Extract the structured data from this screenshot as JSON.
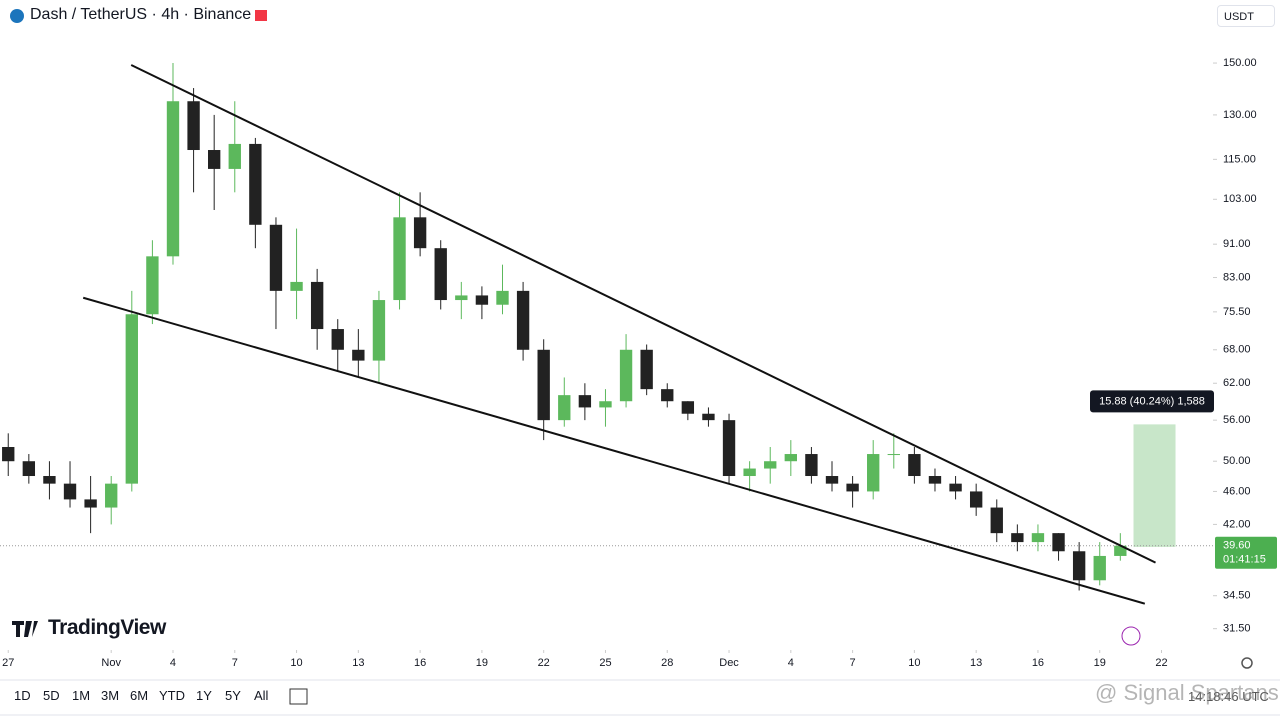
{
  "header": {
    "title": "Dash / TetherUS · 4h · Binance",
    "currency": "USDT"
  },
  "brand": "TradingView",
  "toolbar": {
    "ranges": [
      "1D",
      "5D",
      "1M",
      "3M",
      "6M",
      "YTD",
      "1Y",
      "5Y",
      "All"
    ],
    "clock": "14:18:46 UTC"
  },
  "watermark": "@ Signal Spartans",
  "chart_data": {
    "type": "candlestick",
    "log_scale": true,
    "up_color": "#5cb85c",
    "down_color": "#222222",
    "x": [
      0,
      1,
      2,
      3,
      4,
      5,
      6,
      7,
      8,
      9,
      10,
      11,
      12,
      13,
      14,
      15,
      16,
      17,
      18,
      19,
      20,
      21,
      22,
      23,
      24,
      25,
      26,
      27,
      28,
      29,
      30,
      31,
      32,
      33,
      34,
      35,
      36,
      37,
      38,
      39,
      40,
      41,
      42,
      43,
      44,
      45,
      46,
      47,
      48,
      49,
      50,
      51,
      52,
      53,
      54
    ],
    "open": [
      52,
      50,
      48,
      47,
      45,
      44,
      47,
      75,
      88,
      135,
      118,
      112,
      120,
      96,
      80,
      82,
      72,
      68,
      66,
      78,
      98,
      90,
      78,
      79,
      77,
      80,
      68,
      56,
      60,
      58,
      59,
      68,
      61,
      59,
      57,
      56,
      48,
      49,
      50,
      51,
      48,
      47,
      46,
      51,
      51,
      48,
      47,
      46,
      44,
      41,
      40,
      41,
      39,
      36,
      38.5
    ],
    "high": [
      54,
      51,
      50,
      50,
      48,
      48,
      80,
      92,
      150,
      140,
      130,
      135,
      122,
      98,
      95,
      85,
      74,
      72,
      80,
      105,
      105,
      92,
      82,
      81,
      86,
      82,
      70,
      63,
      62,
      61,
      71,
      69,
      62,
      59,
      58,
      57,
      50,
      52,
      53,
      52,
      50,
      48,
      53,
      54,
      52,
      49,
      48,
      47,
      45,
      42,
      42,
      41,
      40,
      40,
      41
    ],
    "low": [
      48,
      47,
      45,
      44,
      41,
      42,
      46,
      73,
      86,
      105,
      100,
      105,
      90,
      72,
      74,
      68,
      64,
      63,
      62,
      76,
      88,
      76,
      74,
      74,
      75,
      66,
      53,
      55,
      56,
      55,
      58,
      60,
      58,
      56,
      55,
      47,
      46,
      47,
      48,
      47,
      46,
      44,
      45,
      49,
      47,
      46,
      45,
      43,
      40,
      39,
      39,
      38,
      35,
      35.5,
      38
    ],
    "close": [
      50,
      48,
      47,
      45,
      44,
      47,
      75,
      88,
      135,
      118,
      112,
      120,
      96,
      80,
      82,
      72,
      68,
      66,
      78,
      98,
      90,
      78,
      79,
      77,
      80,
      68,
      56,
      60,
      58,
      59,
      68,
      61,
      59,
      57,
      56,
      48,
      49,
      50,
      51,
      48,
      47,
      46,
      51,
      51,
      48,
      47,
      46,
      44,
      41,
      40,
      41,
      39,
      36,
      38.5,
      39.6
    ],
    "xlim": [
      -0.4,
      58.5
    ],
    "xticks": [
      {
        "value": 0,
        "label": "27"
      },
      {
        "value": 5,
        "label": "Nov"
      },
      {
        "value": 8,
        "label": "4"
      },
      {
        "value": 11,
        "label": "7"
      },
      {
        "value": 14,
        "label": "10"
      },
      {
        "value": 17,
        "label": "13"
      },
      {
        "value": 20,
        "label": "16"
      },
      {
        "value": 23,
        "label": "19"
      },
      {
        "value": 26,
        "label": "22"
      },
      {
        "value": 29,
        "label": "25"
      },
      {
        "value": 32,
        "label": "28"
      },
      {
        "value": 35,
        "label": "Dec"
      },
      {
        "value": 38,
        "label": "4"
      },
      {
        "value": 41,
        "label": "7"
      },
      {
        "value": 44,
        "label": "10"
      },
      {
        "value": 47,
        "label": "13"
      },
      {
        "value": 50,
        "label": "16"
      },
      {
        "value": 53,
        "label": "19"
      },
      {
        "value": 56,
        "label": "22"
      }
    ],
    "ylim": [
      29.7,
      178.5
    ],
    "yticks": [
      {
        "value": 150,
        "label": "150.00"
      },
      {
        "value": 130,
        "label": "130.00"
      },
      {
        "value": 115,
        "label": "115.00"
      },
      {
        "value": 103,
        "label": "103.00"
      },
      {
        "value": 91,
        "label": "91.00"
      },
      {
        "value": 83,
        "label": "83.00"
      },
      {
        "value": 75.5,
        "label": "75.50"
      },
      {
        "value": 68,
        "label": "68.00"
      },
      {
        "value": 62,
        "label": "62.00"
      },
      {
        "value": 56,
        "label": "56.00"
      },
      {
        "value": 50,
        "label": "50.00"
      },
      {
        "value": 46,
        "label": "46.00"
      },
      {
        "value": 42,
        "label": "42.00"
      },
      {
        "value": 34.5,
        "label": "34.50"
      },
      {
        "value": 31.5,
        "label": "31.50"
      }
    ],
    "last_price": {
      "value": 39.6,
      "label": "39.60",
      "countdown": "01:41:15",
      "color": "#4caf50"
    },
    "trendlines": [
      {
        "x": [
          5.97,
          55.71
        ],
        "y": [
          149.2,
          37.8
        ]
      },
      {
        "x": [
          3.64,
          55.19
        ],
        "y": [
          78.5,
          33.75
        ]
      }
    ],
    "position": {
      "x": [
        54.64,
        56.68
      ],
      "entry": 39.47,
      "target": 55.35,
      "label": "15.88 (40.24%) 1,588",
      "color": "#c8e6c9"
    }
  }
}
